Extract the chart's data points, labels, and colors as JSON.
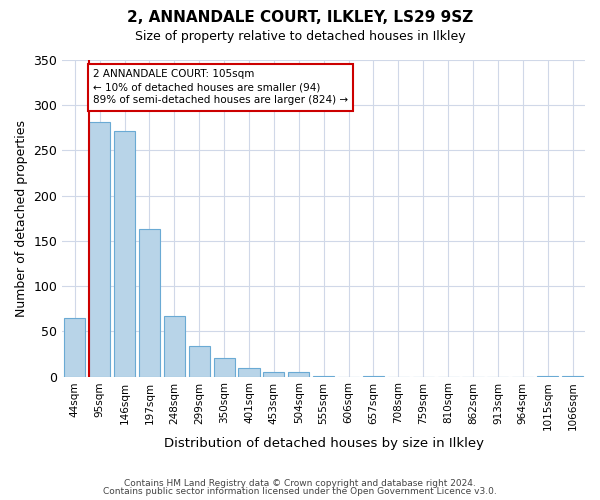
{
  "title": "2, ANNANDALE COURT, ILKLEY, LS29 9SZ",
  "subtitle": "Size of property relative to detached houses in Ilkley",
  "bar_labels": [
    "44sqm",
    "95sqm",
    "146sqm",
    "197sqm",
    "248sqm",
    "299sqm",
    "350sqm",
    "401sqm",
    "453sqm",
    "504sqm",
    "555sqm",
    "606sqm",
    "657sqm",
    "708sqm",
    "759sqm",
    "810sqm",
    "862sqm",
    "913sqm",
    "964sqm",
    "1015sqm",
    "1066sqm"
  ],
  "bar_values": [
    65,
    281,
    271,
    163,
    67,
    34,
    20,
    9,
    5,
    5,
    1,
    0,
    1,
    0,
    0,
    0,
    0,
    0,
    0,
    1,
    1
  ],
  "bar_color": "#b8d4e8",
  "bar_edge_color": "#6aaad4",
  "marker_color": "#cc0000",
  "annotation_text": "2 ANNANDALE COURT: 105sqm\n← 10% of detached houses are smaller (94)\n89% of semi-detached houses are larger (824) →",
  "annotation_box_color": "#ffffff",
  "annotation_box_edge": "#cc0000",
  "ylabel": "Number of detached properties",
  "xlabel": "Distribution of detached houses by size in Ilkley",
  "ylim": [
    0,
    350
  ],
  "yticks": [
    0,
    50,
    100,
    150,
    200,
    250,
    300,
    350
  ],
  "footer_line1": "Contains HM Land Registry data © Crown copyright and database right 2024.",
  "footer_line2": "Contains public sector information licensed under the Open Government Licence v3.0.",
  "grid_color": "#d0d8e8",
  "background_color": "#ffffff"
}
